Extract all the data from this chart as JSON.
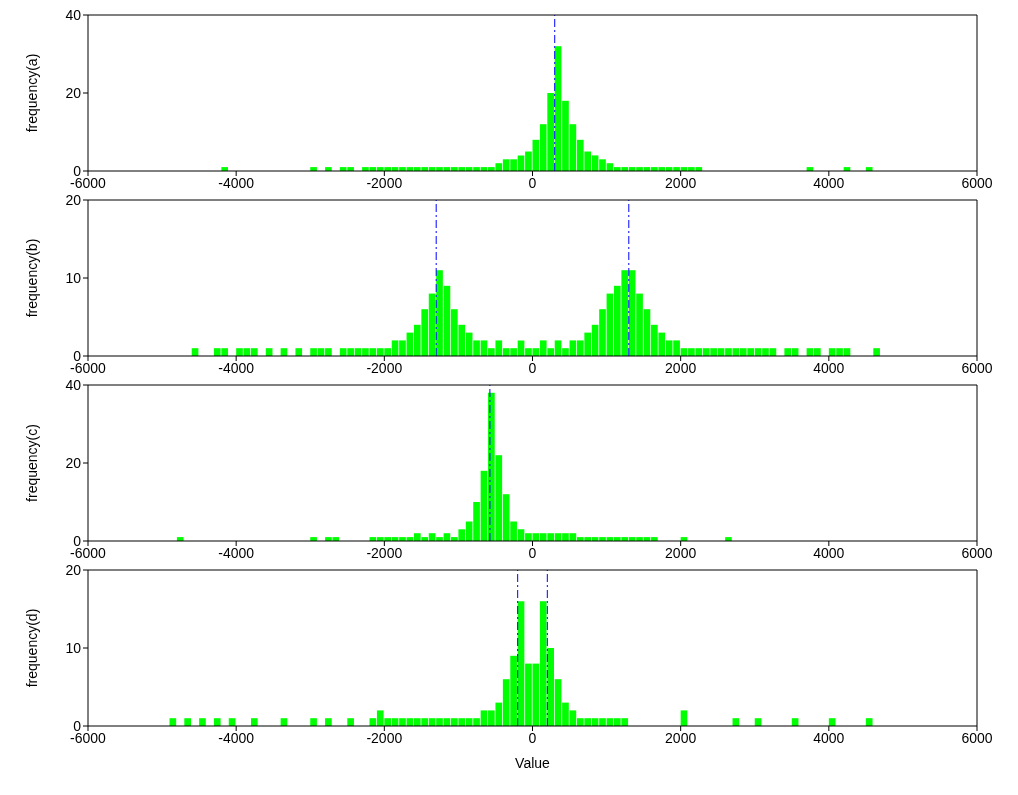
{
  "chart_data": [
    {
      "type": "histogram",
      "ylabel": "frequency(a)",
      "color": "#00ff00",
      "xlim": [
        -6000,
        6000
      ],
      "xticks": [
        -6000,
        -4000,
        -2000,
        0,
        2000,
        4000,
        6000
      ],
      "ylim": [
        0,
        40
      ],
      "yticks": [
        0,
        20,
        40
      ],
      "bins": [
        -5000,
        -4900,
        -4800,
        -4700,
        -4600,
        -4500,
        -4400,
        -4300,
        -4200,
        -4100,
        -4000,
        -3900,
        -3800,
        -3700,
        -3600,
        -3500,
        -3400,
        -3300,
        -3200,
        -3100,
        -3000,
        -2900,
        -2800,
        -2700,
        -2600,
        -2500,
        -2400,
        -2300,
        -2200,
        -2100,
        -2000,
        -1900,
        -1800,
        -1700,
        -1600,
        -1500,
        -1400,
        -1300,
        -1200,
        -1100,
        -1000,
        -900,
        -800,
        -700,
        -600,
        -500,
        -400,
        -300,
        -200,
        -100,
        0,
        100,
        200,
        300,
        400,
        500,
        600,
        700,
        800,
        900,
        1000,
        1100,
        1200,
        1300,
        1400,
        1500,
        1600,
        1700,
        1800,
        1900,
        2000,
        2100,
        2200,
        2300,
        2400,
        2500,
        2600,
        2700,
        2800,
        2900,
        3000,
        3100,
        3200,
        3300,
        3400,
        3500,
        3600,
        3700,
        3800,
        3900,
        4000,
        4100,
        4200,
        4300,
        4400,
        4500,
        4600,
        4700,
        4800,
        4900,
        5000
      ],
      "values": [
        0,
        0,
        0,
        0,
        0,
        0,
        0,
        0,
        1,
        0,
        0,
        0,
        0,
        0,
        0,
        0,
        0,
        0,
        0,
        0,
        1,
        0,
        1,
        0,
        1,
        1,
        0,
        1,
        1,
        1,
        1,
        1,
        1,
        1,
        1,
        1,
        1,
        1,
        1,
        1,
        1,
        1,
        1,
        1,
        1,
        2,
        3,
        3,
        4,
        5,
        8,
        12,
        20,
        32,
        18,
        12,
        8,
        5,
        4,
        3,
        2,
        1,
        1,
        1,
        1,
        1,
        1,
        1,
        1,
        1,
        1,
        1,
        1,
        0,
        0,
        0,
        0,
        0,
        0,
        0,
        0,
        0,
        0,
        0,
        0,
        0,
        0,
        1,
        0,
        0,
        0,
        0,
        1,
        0,
        0,
        1,
        0,
        0,
        0,
        0
      ],
      "ref_lines": [
        {
          "axis": "x",
          "value": 300,
          "color": "#0000ff",
          "line_style": "dashed"
        }
      ]
    },
    {
      "type": "histogram",
      "ylabel": "frequency(b)",
      "color": "#00ff00",
      "xlim": [
        -6000,
        6000
      ],
      "xticks": [
        -6000,
        -4000,
        -2000,
        0,
        2000,
        4000,
        6000
      ],
      "ylim": [
        0,
        20
      ],
      "yticks": [
        0,
        10,
        20
      ],
      "bins": [
        -5000,
        -4900,
        -4800,
        -4700,
        -4600,
        -4500,
        -4400,
        -4300,
        -4200,
        -4100,
        -4000,
        -3900,
        -3800,
        -3700,
        -3600,
        -3500,
        -3400,
        -3300,
        -3200,
        -3100,
        -3000,
        -2900,
        -2800,
        -2700,
        -2600,
        -2500,
        -2400,
        -2300,
        -2200,
        -2100,
        -2000,
        -1900,
        -1800,
        -1700,
        -1600,
        -1500,
        -1400,
        -1300,
        -1200,
        -1100,
        -1000,
        -900,
        -800,
        -700,
        -600,
        -500,
        -400,
        -300,
        -200,
        -100,
        0,
        100,
        200,
        300,
        400,
        500,
        600,
        700,
        800,
        900,
        1000,
        1100,
        1200,
        1300,
        1400,
        1500,
        1600,
        1700,
        1800,
        1900,
        2000,
        2100,
        2200,
        2300,
        2400,
        2500,
        2600,
        2700,
        2800,
        2900,
        3000,
        3100,
        3200,
        3300,
        3400,
        3500,
        3600,
        3700,
        3800,
        3900,
        4000,
        4100,
        4200,
        4300,
        4400,
        4500,
        4600,
        4700,
        4800,
        4900,
        5000
      ],
      "values": [
        0,
        0,
        0,
        0,
        1,
        0,
        0,
        1,
        1,
        0,
        1,
        1,
        1,
        0,
        1,
        0,
        1,
        0,
        1,
        0,
        1,
        1,
        1,
        0,
        1,
        1,
        1,
        1,
        1,
        1,
        1,
        2,
        2,
        3,
        4,
        6,
        8,
        11,
        9,
        6,
        4,
        3,
        2,
        2,
        1,
        2,
        1,
        1,
        2,
        1,
        1,
        2,
        1,
        2,
        1,
        2,
        2,
        3,
        4,
        6,
        8,
        9,
        11,
        11,
        8,
        6,
        4,
        3,
        2,
        2,
        1,
        1,
        1,
        1,
        1,
        1,
        1,
        1,
        1,
        1,
        1,
        1,
        1,
        0,
        1,
        1,
        0,
        1,
        1,
        0,
        1,
        1,
        1,
        0,
        0,
        0,
        1,
        0,
        0,
        0
      ],
      "ref_lines": [
        {
          "axis": "x",
          "value": -1300,
          "color": "#0000ff",
          "line_style": "dashed"
        },
        {
          "axis": "x",
          "value": 1300,
          "color": "#0000ff",
          "line_style": "dashed"
        }
      ]
    },
    {
      "type": "histogram",
      "ylabel": "frequency(c)",
      "color": "#00ff00",
      "xlim": [
        -6000,
        6000
      ],
      "xticks": [
        -6000,
        -4000,
        -2000,
        0,
        2000,
        4000,
        6000
      ],
      "ylim": [
        0,
        40
      ],
      "yticks": [
        0,
        20,
        40
      ],
      "bins": [
        -5000,
        -4900,
        -4800,
        -4700,
        -4600,
        -4500,
        -4400,
        -4300,
        -4200,
        -4100,
        -4000,
        -3900,
        -3800,
        -3700,
        -3600,
        -3500,
        -3400,
        -3300,
        -3200,
        -3100,
        -3000,
        -2900,
        -2800,
        -2700,
        -2600,
        -2500,
        -2400,
        -2300,
        -2200,
        -2100,
        -2000,
        -1900,
        -1800,
        -1700,
        -1600,
        -1500,
        -1400,
        -1300,
        -1200,
        -1100,
        -1000,
        -900,
        -800,
        -700,
        -600,
        -500,
        -400,
        -300,
        -200,
        -100,
        0,
        100,
        200,
        300,
        400,
        500,
        600,
        700,
        800,
        900,
        1000,
        1100,
        1200,
        1300,
        1400,
        1500,
        1600,
        1700,
        1800,
        1900,
        2000,
        2100,
        2200,
        2300,
        2400,
        2500,
        2600,
        2700,
        2800,
        2900,
        3000,
        3100,
        3200,
        3300,
        3400,
        3500,
        3600,
        3700,
        3800,
        3900,
        4000,
        4100,
        4200,
        4300,
        4400,
        4500,
        4600,
        4700,
        4800,
        4900,
        5000
      ],
      "values": [
        0,
        0,
        1,
        0,
        0,
        0,
        0,
        0,
        0,
        0,
        0,
        0,
        0,
        0,
        0,
        0,
        0,
        0,
        0,
        0,
        1,
        0,
        1,
        1,
        0,
        0,
        0,
        0,
        1,
        1,
        1,
        1,
        1,
        1,
        2,
        1,
        2,
        1,
        2,
        1,
        3,
        5,
        10,
        18,
        38,
        22,
        12,
        5,
        3,
        2,
        2,
        2,
        2,
        2,
        2,
        2,
        1,
        1,
        1,
        1,
        1,
        1,
        1,
        1,
        1,
        1,
        1,
        0,
        0,
        0,
        1,
        0,
        0,
        0,
        0,
        0,
        1,
        0,
        0,
        0,
        0,
        0,
        0,
        0,
        0,
        0,
        0,
        0,
        0,
        0,
        0,
        0,
        0,
        0,
        0,
        0,
        0,
        0,
        0,
        0
      ],
      "ref_lines": [
        {
          "axis": "x",
          "value": -575,
          "color": "#0000ff",
          "line_style": "dashed"
        }
      ]
    },
    {
      "type": "histogram",
      "ylabel": "frequency(d)",
      "xlabel": "Value",
      "color": "#00ff00",
      "xlim": [
        -6000,
        6000
      ],
      "xticks": [
        -6000,
        -4000,
        -2000,
        0,
        2000,
        4000,
        6000
      ],
      "ylim": [
        0,
        20
      ],
      "yticks": [
        0,
        10,
        20
      ],
      "bins": [
        -5000,
        -4900,
        -4800,
        -4700,
        -4600,
        -4500,
        -4400,
        -4300,
        -4200,
        -4100,
        -4000,
        -3900,
        -3800,
        -3700,
        -3600,
        -3500,
        -3400,
        -3300,
        -3200,
        -3100,
        -3000,
        -2900,
        -2800,
        -2700,
        -2600,
        -2500,
        -2400,
        -2300,
        -2200,
        -2100,
        -2000,
        -1900,
        -1800,
        -1700,
        -1600,
        -1500,
        -1400,
        -1300,
        -1200,
        -1100,
        -1000,
        -900,
        -800,
        -700,
        -600,
        -500,
        -400,
        -300,
        -200,
        -100,
        0,
        100,
        200,
        300,
        400,
        500,
        600,
        700,
        800,
        900,
        1000,
        1100,
        1200,
        1300,
        1400,
        1500,
        1600,
        1700,
        1800,
        1900,
        2000,
        2100,
        2200,
        2300,
        2400,
        2500,
        2600,
        2700,
        2800,
        2900,
        3000,
        3100,
        3200,
        3300,
        3400,
        3500,
        3600,
        3700,
        3800,
        3900,
        4000,
        4100,
        4200,
        4300,
        4400,
        4500,
        4600,
        4700,
        4800,
        4900,
        5000
      ],
      "values": [
        0,
        1,
        0,
        1,
        0,
        1,
        0,
        1,
        0,
        1,
        0,
        0,
        1,
        0,
        0,
        0,
        1,
        0,
        0,
        0,
        1,
        0,
        1,
        0,
        0,
        1,
        0,
        0,
        1,
        2,
        1,
        1,
        1,
        1,
        1,
        1,
        1,
        1,
        1,
        1,
        1,
        1,
        1,
        2,
        2,
        3,
        6,
        9,
        16,
        8,
        8,
        16,
        10,
        6,
        3,
        2,
        1,
        1,
        1,
        1,
        1,
        1,
        1,
        0,
        0,
        0,
        0,
        0,
        0,
        0,
        2,
        0,
        0,
        0,
        0,
        0,
        0,
        1,
        0,
        0,
        1,
        0,
        0,
        0,
        0,
        1,
        0,
        0,
        0,
        0,
        1,
        0,
        0,
        0,
        0,
        1,
        0,
        0,
        0,
        0
      ],
      "ref_lines": [
        {
          "axis": "x",
          "value": -200,
          "color": "#0000ff",
          "line_style": "dashed"
        },
        {
          "axis": "x",
          "value": 200,
          "color": "#0000ff",
          "line_style": "dashed"
        }
      ]
    }
  ]
}
